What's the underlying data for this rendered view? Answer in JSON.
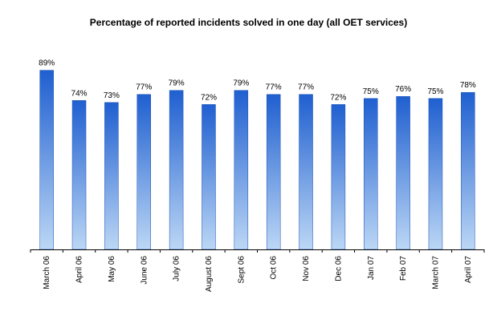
{
  "chart_data": {
    "type": "bar",
    "title": "Percentage of reported incidents solved in one day (all OET services)",
    "xlabel": "",
    "ylabel": "",
    "ylim": [
      0,
      100
    ],
    "grid": false,
    "legend": "none",
    "categories": [
      "March 06",
      "April 06",
      "May 06",
      "June 06",
      "July 06",
      "August 06",
      "Sept 06",
      "Oct 06",
      "Nov 06",
      "Dec 06",
      "Jan 07",
      "Feb 07",
      "March 07",
      "April 07"
    ],
    "values": [
      89,
      74,
      73,
      77,
      79,
      72,
      79,
      77,
      77,
      72,
      75,
      76,
      75,
      78
    ],
    "value_labels": [
      "89%",
      "74%",
      "73%",
      "77%",
      "79%",
      "72%",
      "79%",
      "77%",
      "77%",
      "72%",
      "75%",
      "76%",
      "75%",
      "78%"
    ],
    "colors": {
      "bar_top": "#1f5fd0",
      "bar_bottom": "#bcd7f5",
      "bar_stroke": "#1a4fb0",
      "axis": "#000000"
    }
  }
}
